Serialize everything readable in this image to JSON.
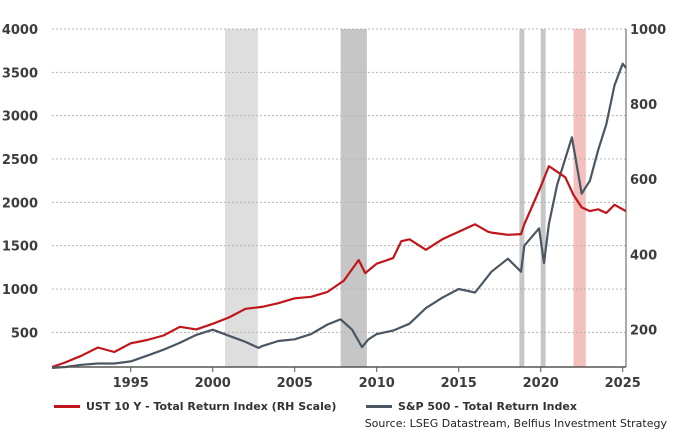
{
  "chart_data": {
    "type": "line",
    "title": "",
    "xlabel": "",
    "ylabel": "",
    "xlim": [
      1990.2,
      2025.2
    ],
    "x_ticks": [
      "1995",
      "2000",
      "2005",
      "2010",
      "2015",
      "2020",
      "2025"
    ],
    "left_axis": {
      "ylim": [
        100,
        4000
      ],
      "ticks": [
        "4000",
        "3500",
        "3000",
        "2500",
        "2000",
        "1500",
        "1000",
        "500"
      ]
    },
    "right_axis": {
      "ylim": [
        100,
        1000
      ],
      "ticks": [
        "1000",
        "800",
        "600",
        "400",
        "200"
      ]
    },
    "gridlines": "horizontal dashed",
    "shaded_periods": [
      {
        "start": 2000.75,
        "end": 2002.75,
        "color": "#dedede"
      },
      {
        "start": 2007.8,
        "end": 2009.4,
        "color": "#c6c6c6"
      },
      {
        "start": 2018.7,
        "end": 2019.0,
        "color": "#c6c6c6"
      },
      {
        "start": 2020.0,
        "end": 2020.3,
        "color": "#c6c6c6"
      },
      {
        "start": 2022.0,
        "end": 2022.75,
        "color": "#f3c0bd"
      }
    ],
    "series": [
      {
        "name": "UST 10 Y - Total Return Index (RH Scale)",
        "axis": "right",
        "color": "#c0161b",
        "points": [
          [
            1990.2,
            100
          ],
          [
            1991,
            112
          ],
          [
            1992,
            130
          ],
          [
            1993,
            152
          ],
          [
            1994,
            140
          ],
          [
            1995,
            163
          ],
          [
            1996,
            172
          ],
          [
            1997,
            184
          ],
          [
            1998,
            207
          ],
          [
            1999,
            200
          ],
          [
            2000,
            215
          ],
          [
            2001,
            232
          ],
          [
            2002,
            255
          ],
          [
            2003,
            260
          ],
          [
            2004,
            270
          ],
          [
            2005,
            283
          ],
          [
            2006,
            287
          ],
          [
            2007,
            300
          ],
          [
            2008,
            330
          ],
          [
            2008.9,
            385
          ],
          [
            2009.3,
            350
          ],
          [
            2010,
            375
          ],
          [
            2011,
            390
          ],
          [
            2011.5,
            435
          ],
          [
            2012,
            440
          ],
          [
            2013,
            412
          ],
          [
            2014,
            440
          ],
          [
            2015,
            460
          ],
          [
            2016,
            480
          ],
          [
            2016.8,
            460
          ],
          [
            2017,
            458
          ],
          [
            2018,
            452
          ],
          [
            2018.8,
            454
          ],
          [
            2019,
            480
          ],
          [
            2019.5,
            530
          ],
          [
            2020,
            580
          ],
          [
            2020.5,
            635
          ],
          [
            2021,
            620
          ],
          [
            2021.5,
            605
          ],
          [
            2022,
            558
          ],
          [
            2022.5,
            525
          ],
          [
            2023,
            515
          ],
          [
            2023.5,
            520
          ],
          [
            2024,
            510
          ],
          [
            2024.5,
            532
          ],
          [
            2025.2,
            515
          ]
        ]
      },
      {
        "name": "S&P 500 - Total Return Index",
        "axis": "left",
        "color": "#4a5763",
        "points": [
          [
            1990.2,
            90
          ],
          [
            1991,
            100
          ],
          [
            1992,
            125
          ],
          [
            1993,
            140
          ],
          [
            1994,
            140
          ],
          [
            1995,
            165
          ],
          [
            1996,
            230
          ],
          [
            1997,
            300
          ],
          [
            1998,
            380
          ],
          [
            1999,
            470
          ],
          [
            2000,
            530
          ],
          [
            2001,
            460
          ],
          [
            2002,
            390
          ],
          [
            2002.8,
            320
          ],
          [
            2003,
            340
          ],
          [
            2004,
            400
          ],
          [
            2005,
            420
          ],
          [
            2006,
            480
          ],
          [
            2007,
            590
          ],
          [
            2007.8,
            650
          ],
          [
            2008.5,
            530
          ],
          [
            2009.1,
            330
          ],
          [
            2009.5,
            420
          ],
          [
            2010,
            480
          ],
          [
            2011,
            520
          ],
          [
            2012,
            600
          ],
          [
            2013,
            780
          ],
          [
            2014,
            900
          ],
          [
            2015,
            1000
          ],
          [
            2016,
            960
          ],
          [
            2017,
            1200
          ],
          [
            2018,
            1350
          ],
          [
            2018.8,
            1200
          ],
          [
            2019,
            1500
          ],
          [
            2019.9,
            1700
          ],
          [
            2020.2,
            1300
          ],
          [
            2020.5,
            1750
          ],
          [
            2021,
            2200
          ],
          [
            2021.9,
            2750
          ],
          [
            2022.5,
            2100
          ],
          [
            2023,
            2250
          ],
          [
            2023.5,
            2600
          ],
          [
            2024,
            2900
          ],
          [
            2024.5,
            3350
          ],
          [
            2025,
            3600
          ],
          [
            2025.2,
            3550
          ]
        ]
      }
    ]
  },
  "legend": {
    "items": [
      {
        "label": "UST 10 Y - Total Return Index (RH Scale)",
        "color": "#c0161b"
      },
      {
        "label": "S&P 500 - Total Return Index",
        "color": "#4a5763"
      }
    ]
  },
  "source": "Source: LSEG Datastream, Belfius Investment Strategy"
}
